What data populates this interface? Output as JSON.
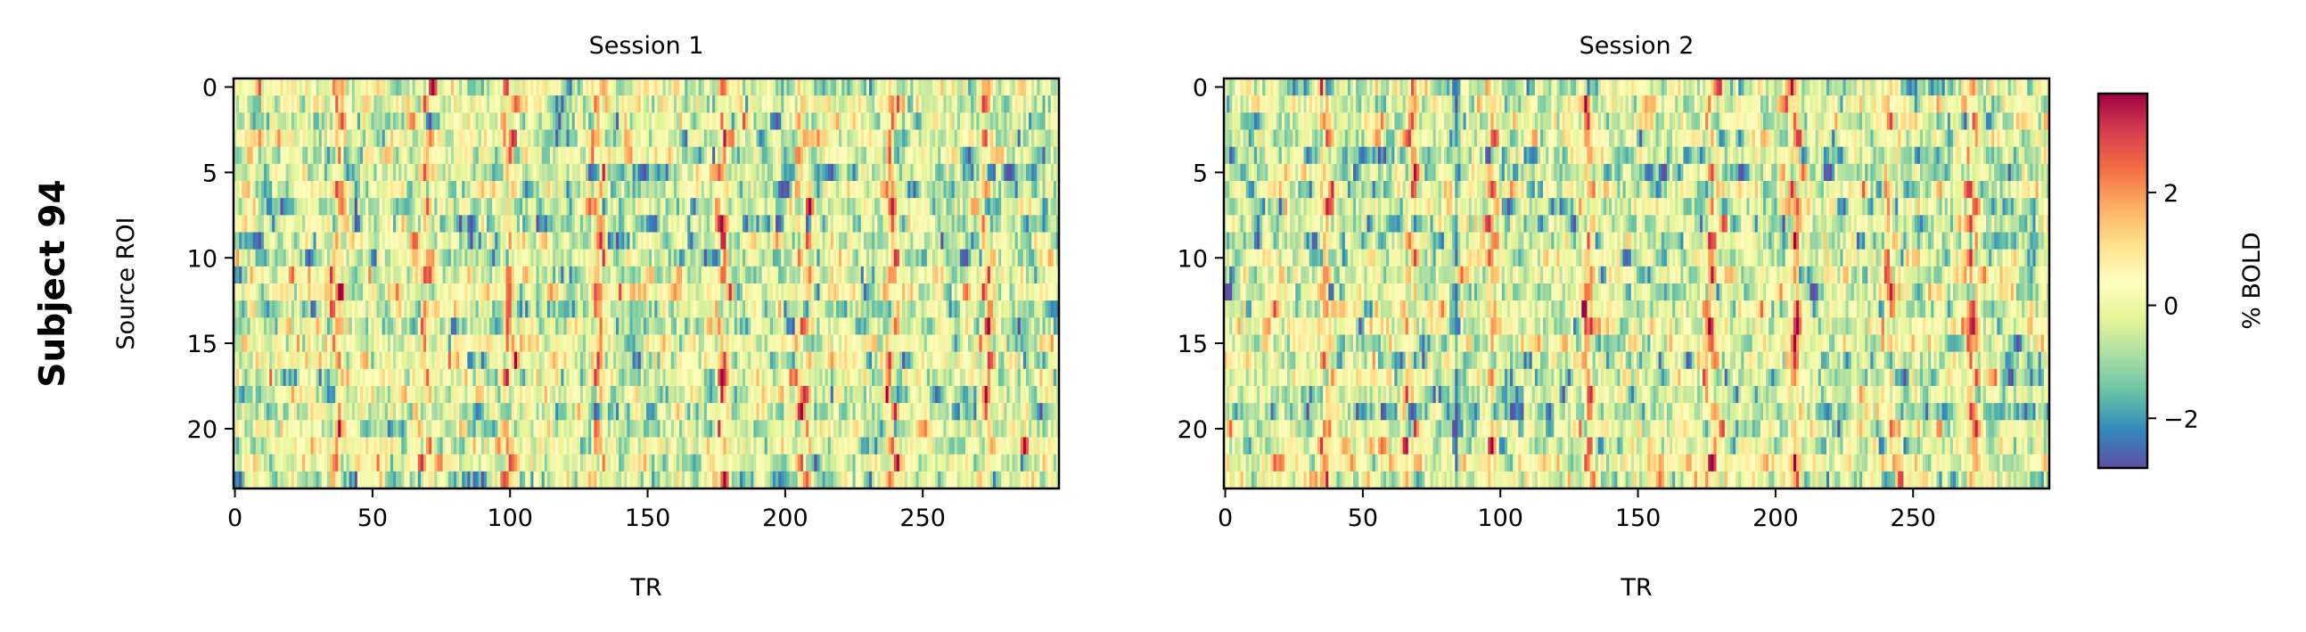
{
  "figure": {
    "row_label": "Subject 94",
    "colorbar_label": "% BOLD"
  },
  "chart_data": [
    {
      "type": "heatmap",
      "title": "Session 1",
      "xlabel": "TR",
      "ylabel": "Source ROI",
      "n_rows": 24,
      "n_cols": 300,
      "xticks": [
        0,
        50,
        100,
        150,
        200,
        250
      ],
      "yticks": [
        0,
        5,
        10,
        15,
        20
      ],
      "peak_TRs": [
        37,
        69,
        99,
        132,
        177,
        206,
        239,
        273
      ],
      "colormap": "Spectral_r"
    },
    {
      "type": "heatmap",
      "title": "Session 2",
      "xlabel": "TR",
      "ylabel": "",
      "n_rows": 24,
      "n_cols": 300,
      "xticks": [
        0,
        50,
        100,
        150,
        200,
        250
      ],
      "yticks": [
        0,
        5,
        10,
        15,
        20
      ],
      "peak_TRs": [
        37,
        67,
        97,
        132,
        177,
        207,
        241,
        272
      ],
      "trough_TRs": [
        84
      ],
      "colormap": "Spectral_r"
    }
  ],
  "colorbar": {
    "vmin": -2.88,
    "vmax": 3.75,
    "ticks": [
      -2,
      0,
      2
    ],
    "tick_labels": [
      "−2",
      "0",
      "2"
    ],
    "colors": [
      "#5e4fa2",
      "#3288bd",
      "#66c2a5",
      "#abdda4",
      "#e6f598",
      "#ffffbf",
      "#fee08b",
      "#fdae61",
      "#f46d43",
      "#d53e4f",
      "#9e0142"
    ]
  }
}
